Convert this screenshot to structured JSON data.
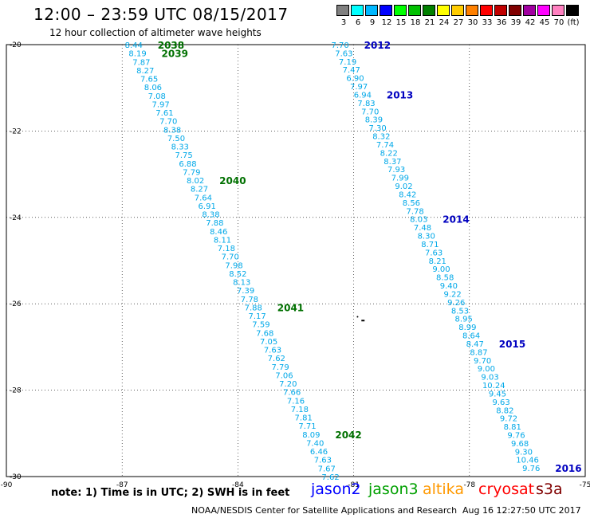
{
  "header": {
    "title": "12:00 – 23:59 UTC 08/15/2017",
    "subtitle": "12 hour collection of altimeter wave heights"
  },
  "colorbar": {
    "levels": [
      {
        "label": "3",
        "color": "#808080"
      },
      {
        "label": "6",
        "color": "#00ffff"
      },
      {
        "label": "9",
        "color": "#00b8ff"
      },
      {
        "label": "12",
        "color": "#0000ff"
      },
      {
        "label": "15",
        "color": "#00ff00"
      },
      {
        "label": "18",
        "color": "#00c000"
      },
      {
        "label": "21",
        "color": "#008000"
      },
      {
        "label": "24",
        "color": "#ffff00"
      },
      {
        "label": "27",
        "color": "#ffcc00"
      },
      {
        "label": "30",
        "color": "#ff8000"
      },
      {
        "label": "33",
        "color": "#ff0000"
      },
      {
        "label": "36",
        "color": "#c00000"
      },
      {
        "label": "39",
        "color": "#800000"
      },
      {
        "label": "42",
        "color": "#a000a0"
      },
      {
        "label": "45",
        "color": "#ff00ff"
      },
      {
        "label": "70",
        "color": "#ff80c0"
      },
      {
        "label": "(ft)",
        "color": "#000000"
      }
    ]
  },
  "map": {
    "lon_range": [
      -90,
      -75
    ],
    "lat_range": [
      -30,
      -20
    ],
    "x_ticks": [
      "-90",
      "-87",
      "-84",
      "-81",
      "-78",
      "-75"
    ],
    "y_ticks": [
      "-20",
      "-22",
      "-24",
      "-26",
      "-28",
      "-30"
    ],
    "x_tick_values": [
      -90,
      -87,
      -84,
      -81,
      -78,
      -75
    ],
    "y_tick_values": [
      -20,
      -22,
      -24,
      -26,
      -28,
      -30
    ],
    "grid": true
  },
  "tracks": [
    {
      "satellite": "jason3",
      "color": "#00a8e8",
      "label_color": "#007000",
      "lon_start": -86.7,
      "lat_start": -20.0,
      "lon_end": -81.6,
      "lat_end": -30.0,
      "values": [
        "8.44",
        "8.19",
        "7.87",
        "8.27",
        "7.65",
        "8.06",
        "7.08",
        "7.97",
        "7.61",
        "7.70",
        "8.38",
        "7.50",
        "8.33",
        "7.75",
        "6.88",
        "7.79",
        "8.02",
        "8.27",
        "7.64",
        "6.91",
        "8.38",
        "7.88",
        "8.46",
        "8.11",
        "7.18",
        "7.70",
        "7.98",
        "8.52",
        "8.13",
        "7.39",
        "7.78",
        "7.88",
        "7.17",
        "7.59",
        "7.68",
        "7.05",
        "7.63",
        "7.62",
        "7.79",
        "7.06",
        "7.20",
        "7.66",
        "7.16",
        "7.18",
        "7.81",
        "7.71",
        "8.09",
        "7.40",
        "6.46",
        "7.63",
        "7.67",
        "7.62"
      ],
      "time_labels": [
        {
          "text": "2038",
          "index": 0
        },
        {
          "text": "2039",
          "index": 1
        },
        {
          "text": "2040",
          "index": 16
        },
        {
          "text": "2041",
          "index": 31
        },
        {
          "text": "2042",
          "index": 46
        }
      ]
    },
    {
      "satellite": "jason2",
      "color": "#00a8e8",
      "label_color": "#0000c0",
      "lon_start": -81.35,
      "lat_start": -20.0,
      "lon_end": -76.4,
      "lat_end": -29.8,
      "values": [
        "7.70",
        "7.63",
        "7.19",
        "7.47",
        "6.90",
        "7.97",
        "6.94",
        "7.83",
        "7.70",
        "8.39",
        "7.30",
        "8.32",
        "7.74",
        "8.22",
        "8.37",
        "7.93",
        "7.99",
        "9.02",
        "8.42",
        "8.56",
        "7.78",
        "8.03",
        "7.48",
        "8.30",
        "8.71",
        "7.63",
        "8.21",
        "9.00",
        "8.58",
        "9.40",
        "9.22",
        "9.26",
        "8.53",
        "8.95",
        "8.99",
        "8.64",
        "8.47",
        "8.87",
        "9.70",
        "9.00",
        "9.03",
        "10.24",
        "9.45",
        "9.63",
        "8.82",
        "9.72",
        "8.81",
        "9.76",
        "9.68",
        "9.30",
        "10.46",
        "9.76"
      ],
      "time_labels": [
        {
          "text": "2012",
          "index": 0
        },
        {
          "text": "2013",
          "index": 6
        },
        {
          "text": "2014",
          "index": 21
        },
        {
          "text": "2015",
          "index": 36
        },
        {
          "text": "2016",
          "index": 51
        }
      ]
    }
  ],
  "footer": {
    "note": "note: 1) Time is in UTC; 2) SWH is in feet",
    "legend": [
      {
        "name": "jason2",
        "color": "#0000ff"
      },
      {
        "name": "jason3",
        "color": "#00a000"
      },
      {
        "name": "altika",
        "color": "#ff9900"
      },
      {
        "name": "cryosat",
        "color": "#ff0000"
      },
      {
        "name": "s3a",
        "color": "#800000"
      }
    ],
    "credit": "NOAA/NESDIS Center for Satellite Applications and Research",
    "timestamp": "Aug 16 12:27:50 UTC 2017"
  }
}
